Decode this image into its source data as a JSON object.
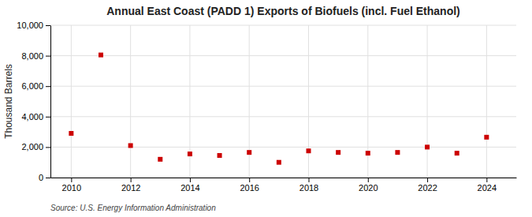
{
  "chart_data": {
    "type": "scatter",
    "title": "Annual East Coast (PADD 1) Exports of Biofuels (incl. Fuel Ethanol)",
    "y_label": "Thousand Barrels",
    "annotation": "Source: U.S. Energy Information Administration",
    "x": [
      2010,
      2011,
      2012,
      2013,
      2014,
      2015,
      2016,
      2017,
      2018,
      2019,
      2020,
      2021,
      2022,
      2023,
      2024
    ],
    "values": [
      2900,
      8050,
      2100,
      1200,
      1550,
      1450,
      1650,
      1000,
      1750,
      1650,
      1600,
      1650,
      2000,
      1600,
      2650
    ],
    "color": "#cc0000",
    "marker": "square",
    "xlim": [
      2009.3,
      2025.0
    ],
    "xticks": [
      2010,
      2012,
      2014,
      2016,
      2018,
      2020,
      2022,
      2024
    ],
    "ylim": [
      0,
      10000
    ],
    "yticks": [
      0,
      {
        "value": 2000,
        "label": "2,000"
      },
      {
        "value": 4000,
        "label": "4,000"
      },
      {
        "value": 6000,
        "label": "6,000"
      },
      {
        "value": 8000,
        "label": "8,000"
      },
      {
        "value": 10000,
        "label": "10,000"
      }
    ],
    "grid": true
  }
}
